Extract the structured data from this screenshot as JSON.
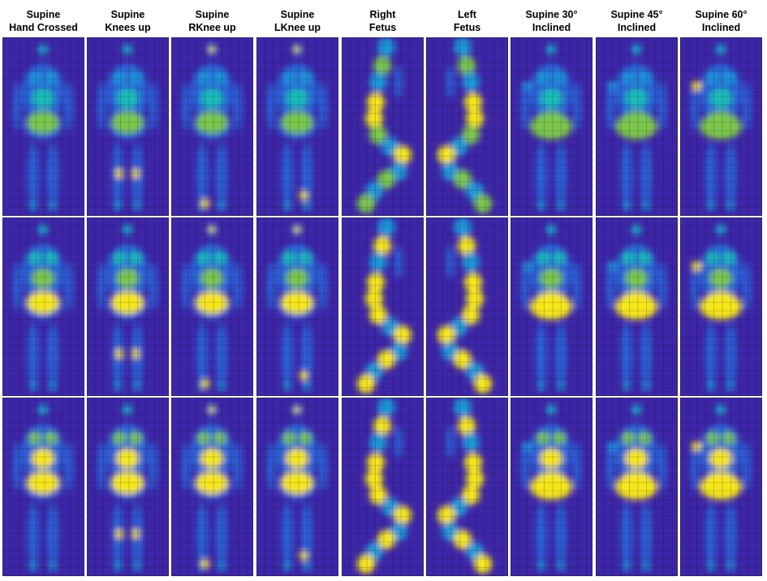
{
  "columns": [
    {
      "line1": "Supine",
      "line2": "Hand Crossed"
    },
    {
      "line1": "Supine",
      "line2": "Knees up"
    },
    {
      "line1": "Supine",
      "line2": "RKnee up"
    },
    {
      "line1": "Supine",
      "line2": "LKnee up"
    },
    {
      "line1": "Right",
      "line2": "Fetus"
    },
    {
      "line1": "Left",
      "line2": "Fetus"
    },
    {
      "line1": "Supine 30°",
      "line2": "Inclined"
    },
    {
      "line1": "Supine 45°",
      "line2": "Inclined"
    },
    {
      "line1": "Supine 60°",
      "line2": "Inclined"
    }
  ]
}
